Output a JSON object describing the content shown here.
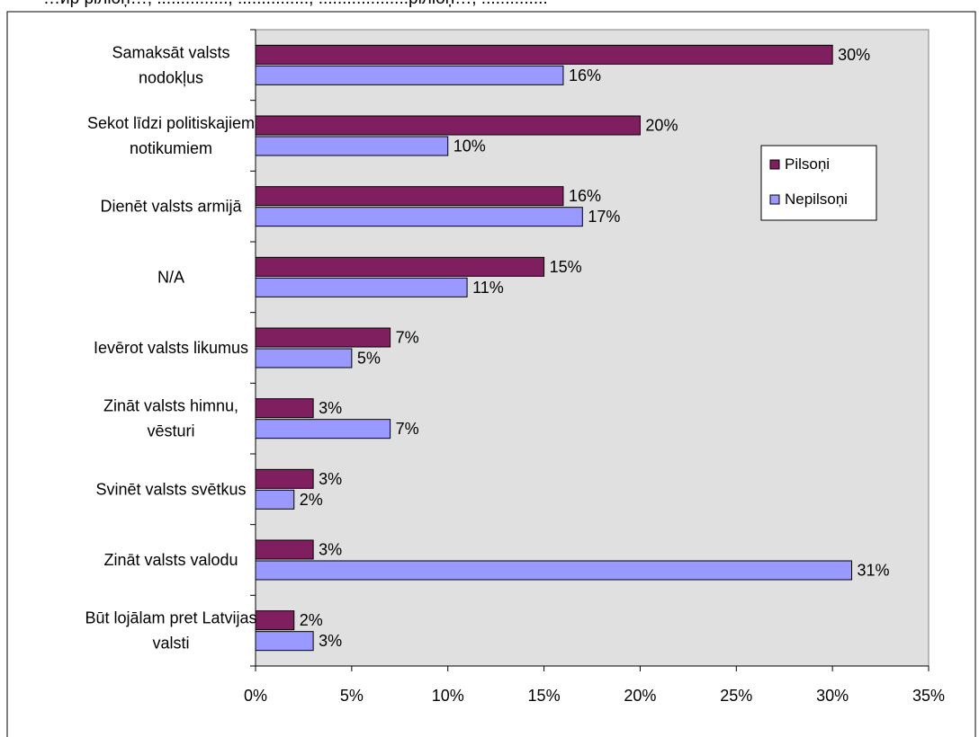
{
  "header_text": "…ир ріліоņ…, ..............., ..............., ...................ріліоņ…, ..............",
  "chart_data": {
    "type": "bar",
    "orientation": "horizontal",
    "title": "",
    "xlabel": "",
    "ylabel": "",
    "xlim": [
      0,
      35
    ],
    "xticks": [
      "0%",
      "5%",
      "10%",
      "15%",
      "20%",
      "25%",
      "30%",
      "35%"
    ],
    "grid": false,
    "legend_position": "right",
    "categories": [
      [
        "Samaksāt valsts",
        "nodokļus"
      ],
      [
        "Sekot līdzi politiskajiem",
        "notikumiem"
      ],
      [
        "Dienēt valsts armijā"
      ],
      [
        "N/A"
      ],
      [
        "Ievērot valsts likumus"
      ],
      [
        "Zināt valsts himnu,",
        "vēsturi"
      ],
      [
        "Svinēt valsts svētkus"
      ],
      [
        "Zināt valsts valodu"
      ],
      [
        "Būt lojālam pret Latvijas",
        "valsti"
      ]
    ],
    "series": [
      {
        "name": "Pilsoņi",
        "color": "#7f1f5f",
        "values": [
          30,
          20,
          16,
          15,
          7,
          3,
          3,
          3,
          2
        ]
      },
      {
        "name": "Nepilsoņi",
        "color": "#9999ff",
        "values": [
          16,
          10,
          17,
          11,
          5,
          7,
          2,
          31,
          3
        ]
      }
    ],
    "plot_background": "#e0e0e0"
  }
}
